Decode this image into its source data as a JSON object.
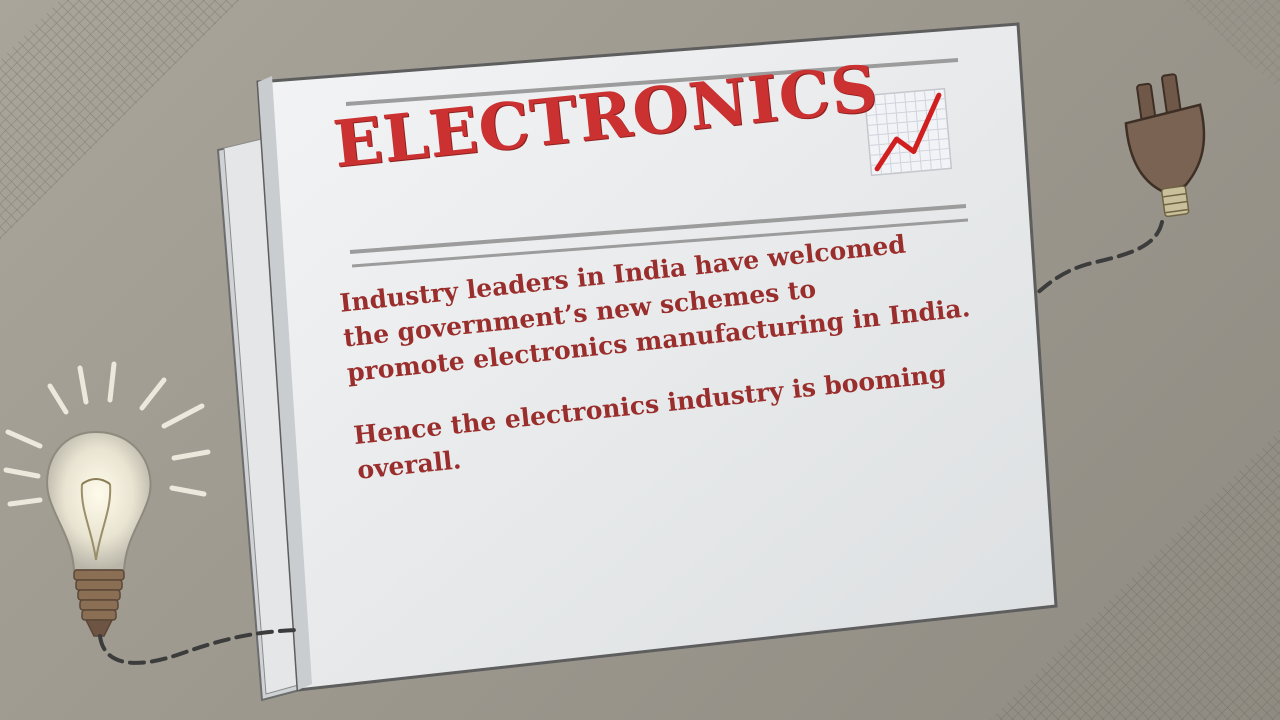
{
  "newspaper": {
    "headline": "ELECTRONICS",
    "paragraphs": [
      "Industry leaders in India have welcomed\nthe government’s new schemes to\npromote electronics manufacturing in India.",
      "Hence the electronics industry is booming\noverall."
    ]
  },
  "icons": {
    "trend": "chart-increasing-icon",
    "bulb": "light-bulb-icon",
    "plug": "electric-plug-icon"
  },
  "colors": {
    "background": "#9d998f",
    "headline": "#cc3131",
    "body_text": "#9a2e2c",
    "paper": "#e6e8e9"
  }
}
